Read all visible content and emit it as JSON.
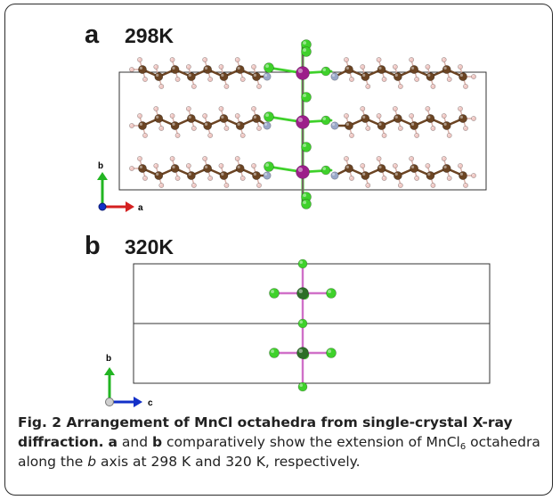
{
  "figure": {
    "panel_a": {
      "letter": "a",
      "temperature": "298K",
      "axis_up": "b",
      "axis_right": "a"
    },
    "panel_b": {
      "letter": "b",
      "temperature": "320K",
      "axis_up": "b",
      "axis_right": "c"
    },
    "colors": {
      "mn": "#9c1f8a",
      "cl": "#3fd12b",
      "carbon": "#6b4423",
      "hydrogen": "#f0c8c4",
      "nitrogen": "#9aa8c8",
      "axis_green": "#22b522",
      "axis_red": "#d42020",
      "axis_blue": "#1230c8"
    }
  },
  "caption": {
    "prefix": "Fig. 2 Arrangement of MnCl octahedra from single-crystal X-ray diffraction.",
    "ref_a": "a",
    "and": " and ",
    "ref_b": "b",
    "text_1": " comparatively show the extension of MnCl",
    "sub": "6",
    "text_2": " octahedra along the ",
    "axis": "b",
    "text_3": " axis at 298 K and 320 K, respectively."
  }
}
